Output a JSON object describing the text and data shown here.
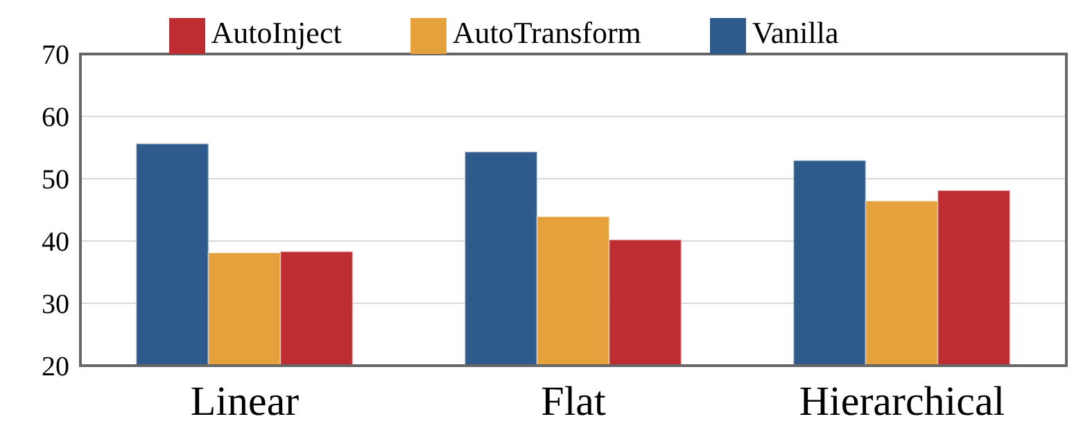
{
  "chart_data": {
    "type": "bar",
    "categories": [
      "Linear",
      "Flat",
      "Hierarchical"
    ],
    "series": [
      {
        "name": "Vanilla",
        "color": "#2f5a8c",
        "values": [
          55.6,
          54.3,
          52.9
        ]
      },
      {
        "name": "AutoTransform",
        "color": "#e5a23c",
        "values": [
          38.1,
          43.9,
          46.4
        ]
      },
      {
        "name": "AutoInject",
        "color": "#bd2d32",
        "values": [
          38.3,
          40.2,
          48.1
        ]
      }
    ],
    "ylim": [
      20,
      70
    ],
    "yticks": [
      20,
      30,
      40,
      50,
      60,
      70
    ],
    "grid": "y",
    "legend": "top"
  }
}
